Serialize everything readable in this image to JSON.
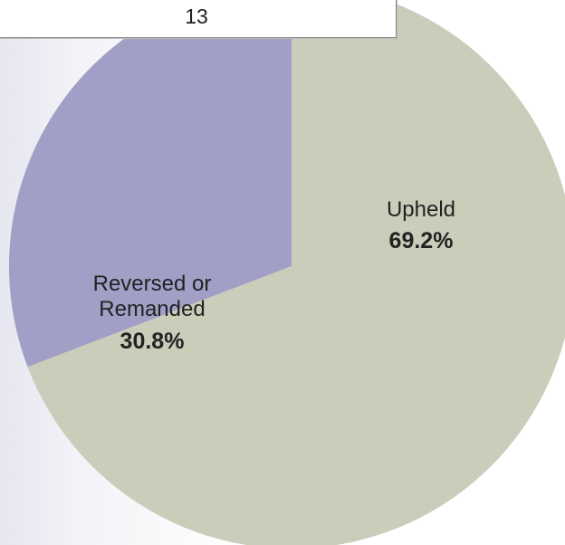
{
  "header": {
    "count": "13"
  },
  "chart_data": {
    "type": "pie",
    "series": [
      {
        "values": [
          69.2,
          30.8
        ]
      }
    ],
    "slices": [
      {
        "label": "Upheld",
        "value": 69.2,
        "value_label": "69.2%",
        "color": "#ccccba"
      },
      {
        "label": "Reversed or\nRemanded",
        "value": 30.8,
        "value_label": "30.8%",
        "color": "#a19fc6"
      }
    ],
    "start_angle_deg": 0,
    "direction": "clockwise"
  }
}
